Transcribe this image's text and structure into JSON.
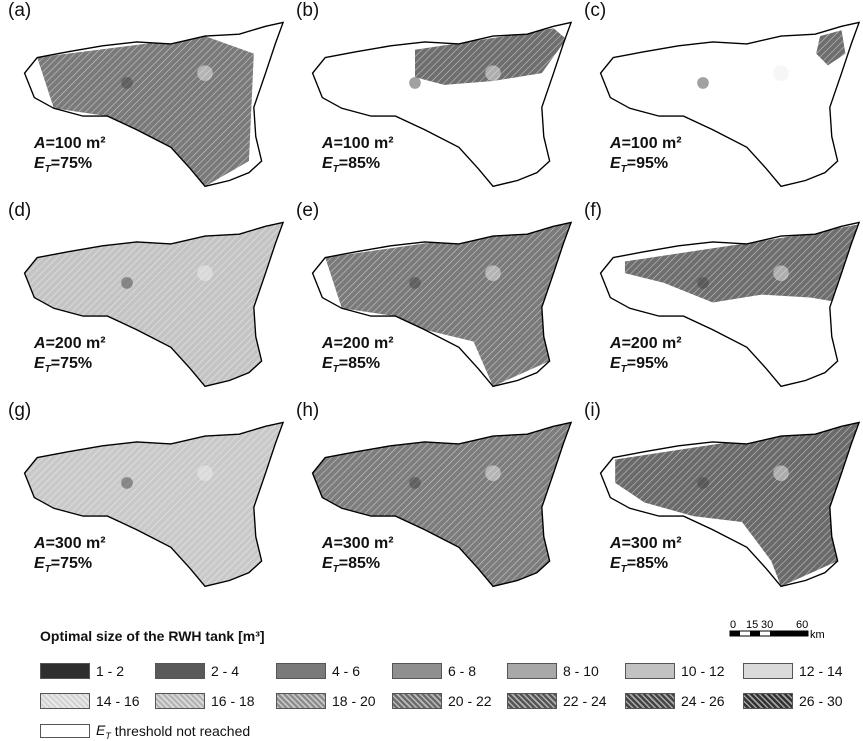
{
  "panels": [
    {
      "letter": "(a)",
      "area": "=100 m²",
      "et": "=75%",
      "fill": "#7a7a7a",
      "extent": "full-west"
    },
    {
      "letter": "(b)",
      "area": "=100 m²",
      "et": "=85%",
      "fill": "#6e6e6e",
      "extent": "north-east-strip"
    },
    {
      "letter": "(c)",
      "area": "=100 m²",
      "et": "=95%",
      "fill": "#6e6e6e",
      "extent": "north-east-spot"
    },
    {
      "letter": "(d)",
      "area": "=200 m²",
      "et": "=75%",
      "fill": "#c4c4c4",
      "extent": "full"
    },
    {
      "letter": "(e)",
      "area": "=200 m²",
      "et": "=85%",
      "fill": "#7a7a7a",
      "extent": "full-minus-south"
    },
    {
      "letter": "(f)",
      "area": "=200 m²",
      "et": "=95%",
      "fill": "#6e6e6e",
      "extent": "north-strip"
    },
    {
      "letter": "(g)",
      "area": "=300 m²",
      "et": "=75%",
      "fill": "#c9c9c9",
      "extent": "full"
    },
    {
      "letter": "(h)",
      "area": "=300 m²",
      "et": "=85%",
      "fill": "#7d7d7d",
      "extent": "full"
    },
    {
      "letter": "(i)",
      "area": "=300 m²",
      "et": "=85%",
      "fill": "#6a6a6a",
      "extent": "north-east-large"
    }
  ],
  "labels": {
    "area_symbol": "A",
    "et_symbol": "E",
    "et_sub": "T"
  },
  "legend": {
    "title": "Optimal size of the RWH tank [m³]",
    "classes": [
      {
        "label": "1 - 2",
        "color": "#2e2e2e",
        "hatch": false
      },
      {
        "label": "2 - 4",
        "color": "#5a5a5a",
        "hatch": false
      },
      {
        "label": "4 - 6",
        "color": "#7a7a7a",
        "hatch": false
      },
      {
        "label": "6 - 8",
        "color": "#8f8f8f",
        "hatch": false
      },
      {
        "label": "8 - 10",
        "color": "#a8a8a8",
        "hatch": false
      },
      {
        "label": "10 - 12",
        "color": "#c2c2c2",
        "hatch": false
      },
      {
        "label": "12 - 14",
        "color": "#dadada",
        "hatch": false
      },
      {
        "label": "14 - 16",
        "color": "#d4d4d4",
        "hatch": true
      },
      {
        "label": "16 - 18",
        "color": "#b5b5b5",
        "hatch": true
      },
      {
        "label": "18 - 20",
        "color": "#8e8e8e",
        "hatch": true
      },
      {
        "label": "20 - 22",
        "color": "#6c6c6c",
        "hatch": true
      },
      {
        "label": "22 - 24",
        "color": "#555555",
        "hatch": true
      },
      {
        "label": "24 - 26",
        "color": "#444444",
        "hatch": true
      },
      {
        "label": "26 - 30",
        "color": "#333333",
        "hatch": true
      }
    ],
    "not_reached_suffix": " threshold not reached"
  },
  "scale": {
    "ticks": [
      "0",
      "15",
      "30",
      "60"
    ],
    "unit": "km"
  }
}
